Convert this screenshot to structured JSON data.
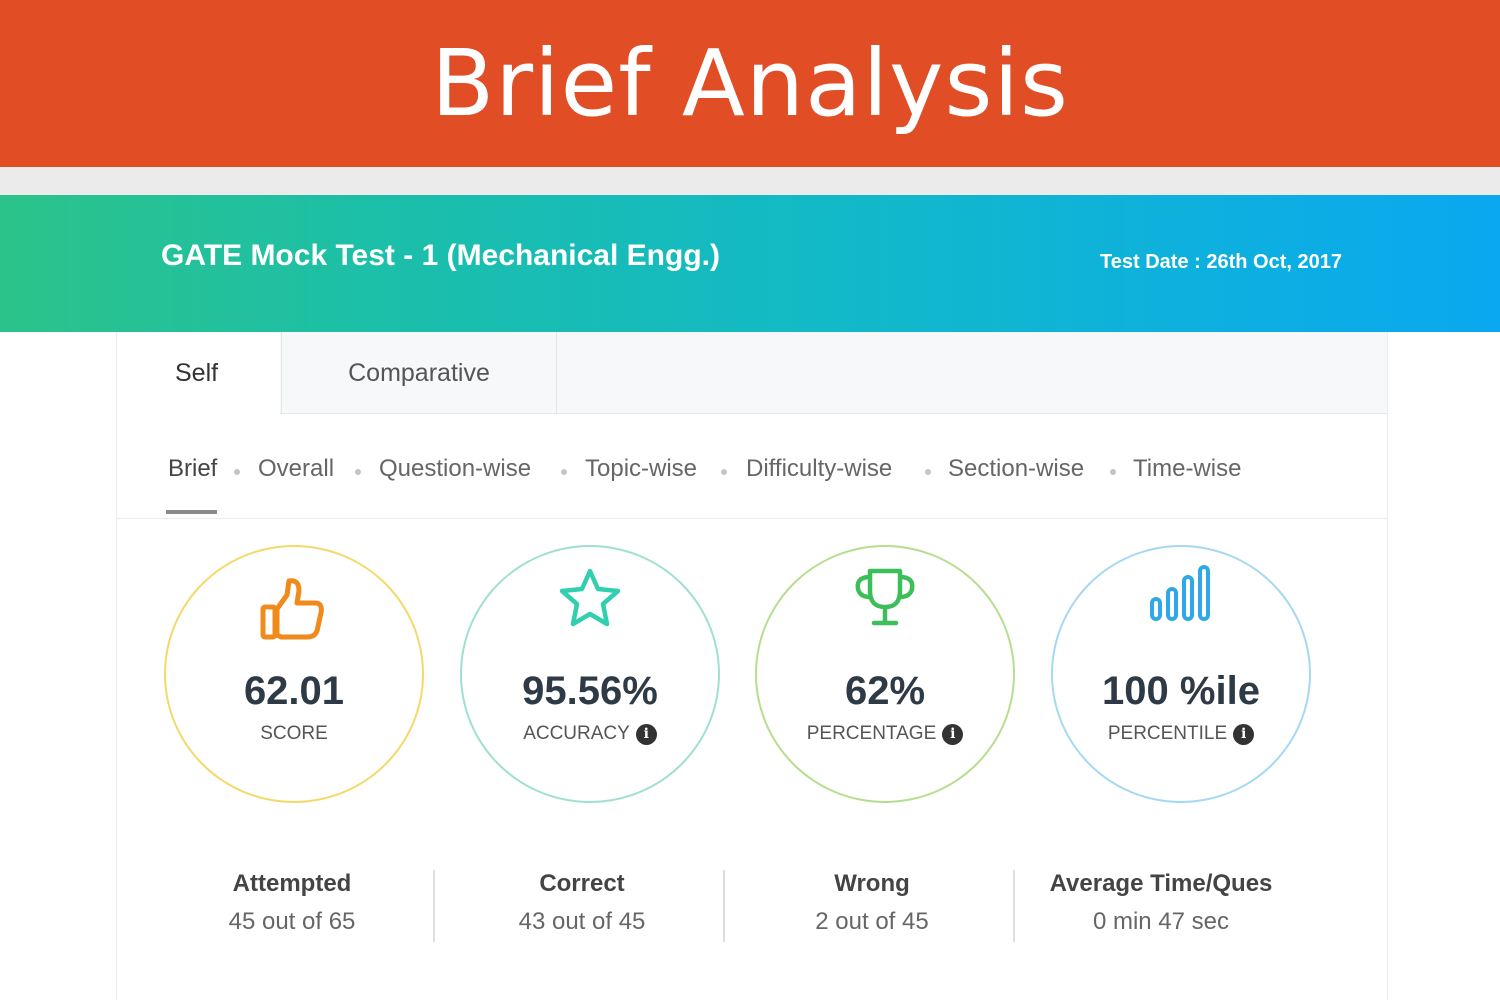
{
  "banner": {
    "title": "Brief Analysis"
  },
  "header": {
    "test_name": "GATE Mock Test - 1 (Mechanical Engg.)",
    "test_date": "Test Date : 26th Oct, 2017",
    "gradient": [
      "#2cc38a",
      "#0aa8f0"
    ]
  },
  "tabs": [
    {
      "label": "Self",
      "active": true
    },
    {
      "label": "Comparative",
      "active": false
    }
  ],
  "subnav": [
    {
      "label": "Brief",
      "active": true
    },
    {
      "label": "Overall"
    },
    {
      "label": "Question-wise"
    },
    {
      "label": "Topic-wise"
    },
    {
      "label": "Difficulty-wise"
    },
    {
      "label": "Section-wise"
    },
    {
      "label": "Time-wise"
    }
  ],
  "stats": [
    {
      "value": "62.01",
      "label": "SCORE",
      "icon": "thumbs-up-icon",
      "color": "#f4d96a",
      "info": false
    },
    {
      "value": "95.56%",
      "label": "ACCURACY",
      "icon": "star-icon",
      "color": "#9fe0d3",
      "info": true
    },
    {
      "value": "62%",
      "label": "PERCENTAGE",
      "icon": "trophy-icon",
      "color": "#b6de8f",
      "info": true
    },
    {
      "value": "100 %ile",
      "label": "PERCENTILE",
      "icon": "bar-chart-icon",
      "color": "#a7d8f2",
      "info": true
    }
  ],
  "summary": [
    {
      "title": "Attempted",
      "value": "45 out of 65"
    },
    {
      "title": "Correct",
      "value": "43 out of 45"
    },
    {
      "title": "Wrong",
      "value": "2 out of 45"
    },
    {
      "title": "Average Time/Ques",
      "value": "0 min 47 sec"
    }
  ],
  "info_glyph": "i"
}
